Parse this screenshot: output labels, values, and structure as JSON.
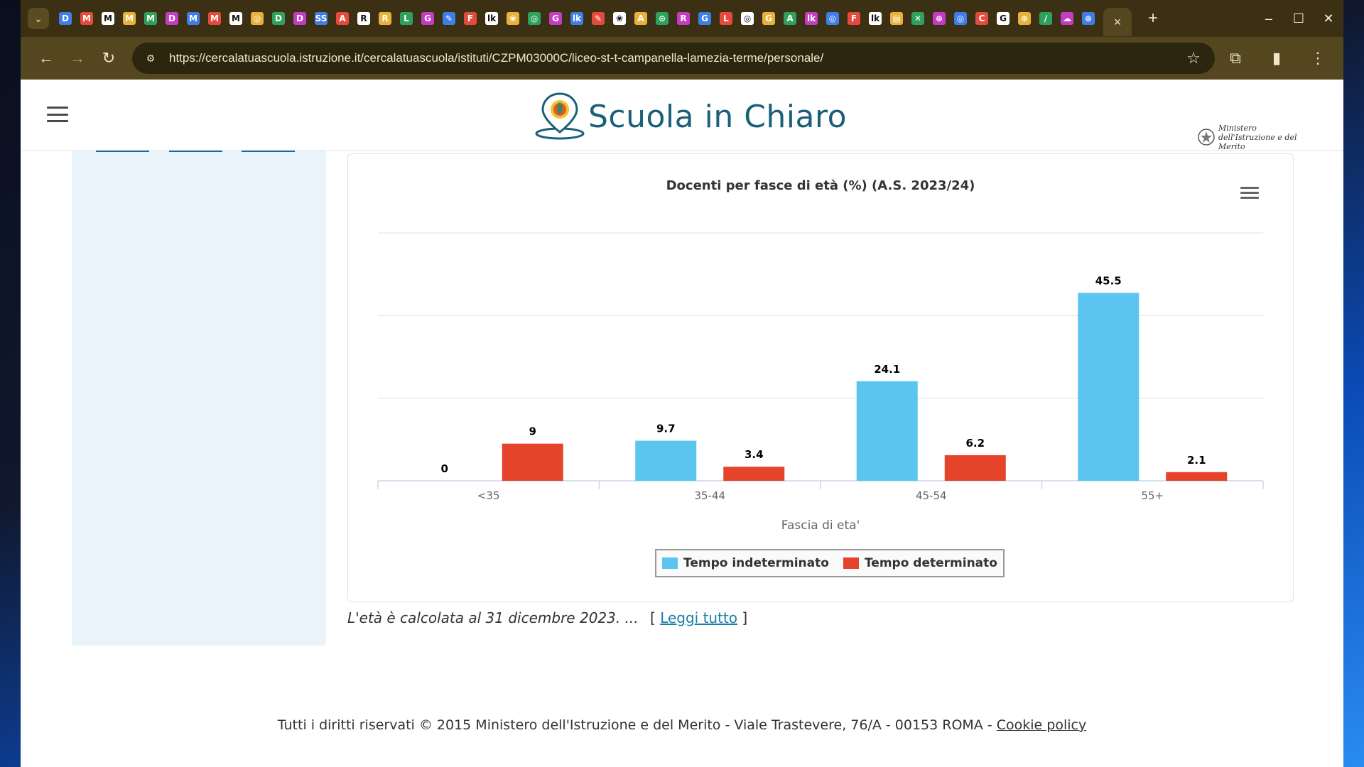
{
  "browser": {
    "url": "https://cercalatuascuola.istruzione.it/cercalatuascuola/istituti/CZPM03000C/liceo-st-t-campanella-lamezia-terme/personale/",
    "favicons": [
      "D",
      "M",
      "M",
      "M",
      "M",
      "D",
      "M",
      "M",
      "M",
      "◎",
      "D",
      "D",
      "SS",
      "A",
      "R",
      "R",
      "L",
      "G",
      "✎",
      "F",
      "lk",
      "❀",
      "◎",
      "G",
      "lk",
      "✎",
      "❀",
      "A",
      "⊙",
      "R",
      "G",
      "L",
      "◎",
      "G",
      "A",
      "lk",
      "◎",
      "F",
      "lk",
      "▤",
      "✕",
      "⊛",
      "◎",
      "C",
      "G",
      "⊕",
      "∕",
      "☁",
      "⊛"
    ],
    "tab_close": "×",
    "new_tab": "+",
    "minimize": "–",
    "maximize": "☐",
    "close": "✕"
  },
  "site": {
    "logo_text": "Scuola in Chiaro",
    "ministero_text": "Ministero dell'Istruzione e del Merito"
  },
  "chart_data": {
    "type": "bar",
    "title": "Docenti per fasce di età (%) (A.S. 2023/24)",
    "xlabel": "Fascia di eta'",
    "ylabel": "",
    "categories": [
      "<35",
      "35-44",
      "45-54",
      "55+"
    ],
    "series": [
      {
        "name": "Tempo indeterminato",
        "color": "#5bc5ef",
        "values": [
          0,
          9.7,
          24.1,
          45.5
        ]
      },
      {
        "name": "Tempo determinato",
        "color": "#e5432a",
        "values": [
          9,
          3.4,
          6.2,
          2.1
        ]
      }
    ],
    "ylim": [
      0,
      60
    ],
    "grid": true,
    "legend": "bottom-center"
  },
  "note": {
    "text": "L'età è calcolata al 31 dicembre 2023. ...",
    "open_bracket": "[",
    "link": "Leggi tutto",
    "close_bracket": "]"
  },
  "footer": {
    "text": "Tutti i diritti riservati © 2015 Ministero dell'Istruzione e del Merito - Viale Trastevere, 76/A - 00153 ROMA - ",
    "cookie_link": "Cookie policy"
  }
}
